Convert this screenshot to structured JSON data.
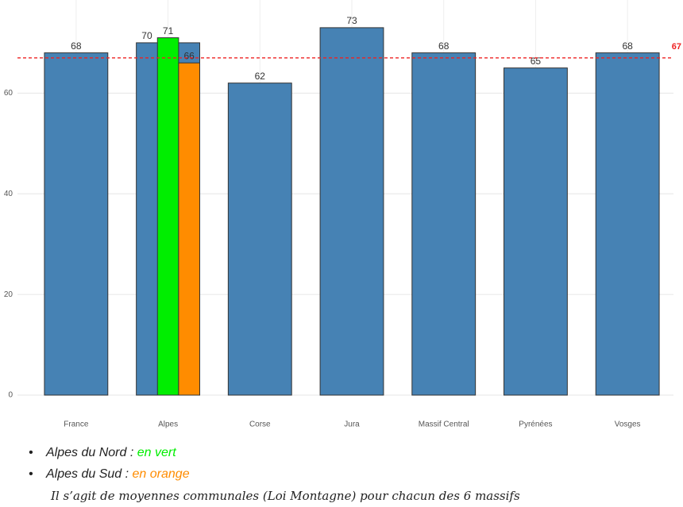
{
  "chart_data": {
    "type": "bar",
    "categories": [
      "France",
      "Alpes",
      "Corse",
      "Jura",
      "Massif Central",
      "Pyrénées",
      "Vosges"
    ],
    "values": [
      68,
      70,
      62,
      73,
      68,
      65,
      68
    ],
    "color": "#4682b4",
    "series": [
      {
        "name": "Alpes du Nord :",
        "color": "#00ee00",
        "category": "Alpes",
        "value": 71,
        "color_name": "en vert"
      },
      {
        "name": "Alpes du Sud :",
        "color": "#ff8c00",
        "category": "Alpes",
        "value": 66,
        "color_name": "en orange"
      }
    ],
    "reference_line": {
      "value": 67,
      "color": "#ee2222"
    },
    "ylim": [
      0,
      78.5
    ],
    "yticks": [
      0,
      20,
      40,
      60
    ],
    "grid": true,
    "caption": "Il s’agit de moyennes communales (Loi Montagne) pour chacun des 6 massifs"
  }
}
